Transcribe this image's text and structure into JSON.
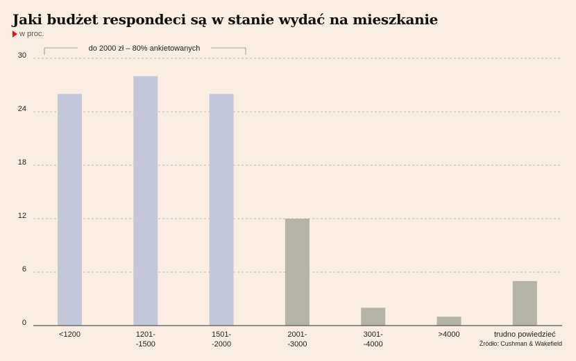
{
  "title": "Jaki budżet respondeci są w stanie wydać na mieszkanie",
  "subtitle": "w proc.",
  "source": "Źródło: Cushman & Wakefield",
  "annotation": "do 2000 zł – 80% ankietowanych",
  "chart_data": {
    "type": "bar",
    "categories": [
      [
        "<1200"
      ],
      [
        "1201-",
        "-1500"
      ],
      [
        "1501-",
        "-2000"
      ],
      [
        "2001-",
        "-3000"
      ],
      [
        "3001-",
        "-4000"
      ],
      [
        ">4000"
      ],
      [
        "trudno powiedzieć"
      ]
    ],
    "values": [
      26,
      28,
      26,
      12,
      2,
      1,
      5
    ],
    "ylim": [
      0,
      30
    ],
    "yticks": [
      0,
      6,
      12,
      18,
      24,
      30
    ],
    "grid": true,
    "bar_colors": [
      "#c4c7d9",
      "#c4c7d9",
      "#c4c7d9",
      "#b4b3a7",
      "#b4b3a7",
      "#b4b3a7",
      "#b4b3a7"
    ],
    "grid_color": "#aaaaaa",
    "axis_color": "#555555"
  }
}
